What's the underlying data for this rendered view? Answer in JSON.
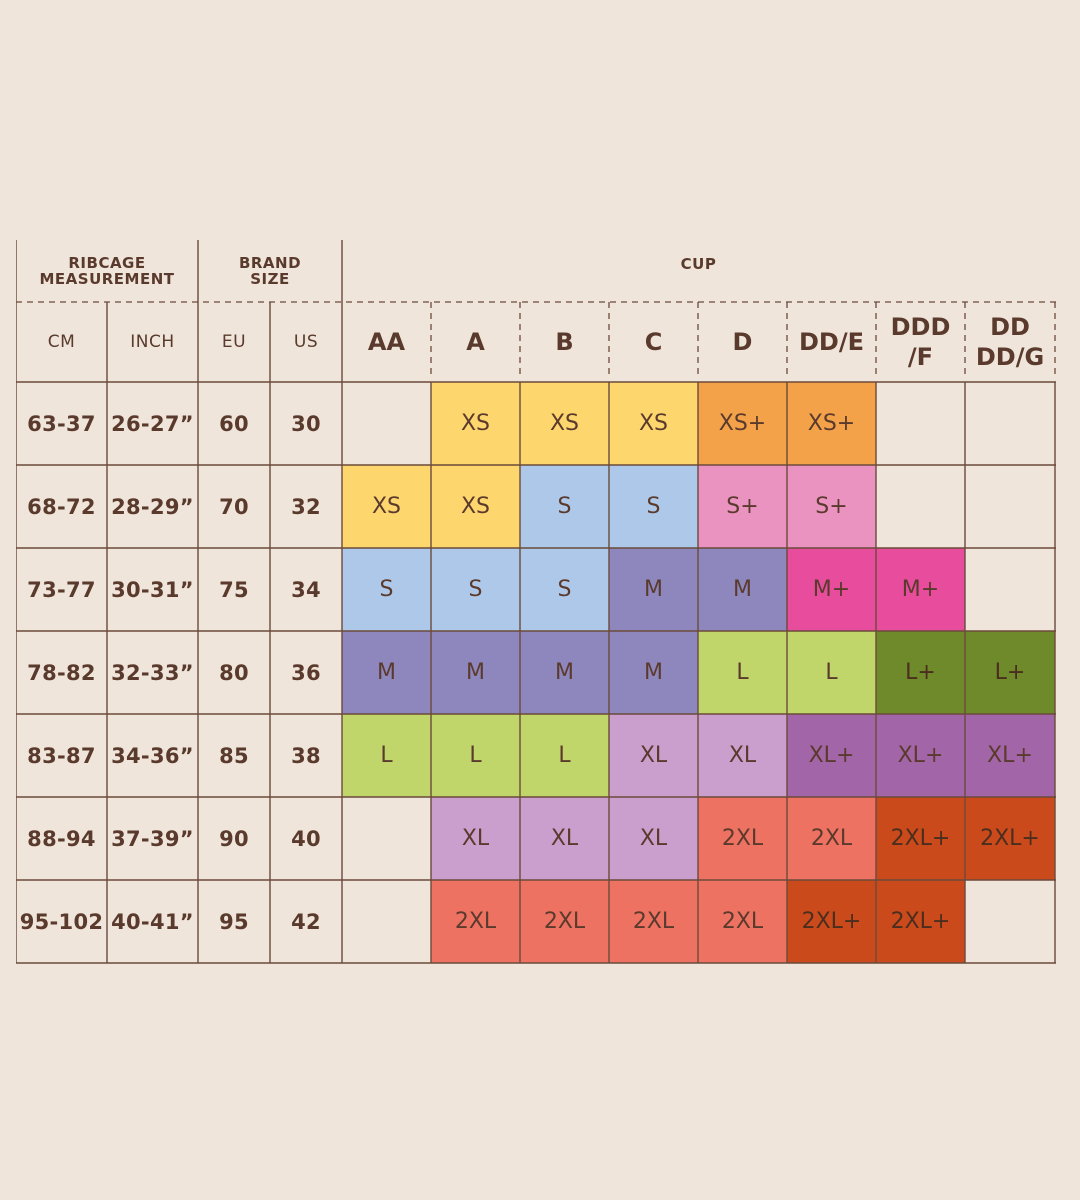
{
  "headers": {
    "ribcage": "RIBCAGE\nMEASUREMENT",
    "brand": "BRAND\nSIZE",
    "cup": "CUP",
    "cm": "CM",
    "inch": "INCH",
    "eu": "EU",
    "us": "US"
  },
  "cups": [
    "AA",
    "A",
    "B",
    "C",
    "D",
    "DD/E",
    "DDD\n/F",
    "DD\nDD/G"
  ],
  "colors": {
    "background": "#EFE5DA",
    "text": "#5A3A2C",
    "lines": "#6B4A3A",
    "XS": "#FDD66E",
    "XS+": "#F4A24A",
    "S": "#AEC8EA",
    "S+": "#EA93C0",
    "M": "#8E87BE",
    "M+": "#E84C9C",
    "L": "#C1D66A",
    "L+": "#6F8A2B",
    "XL": "#CA9ECD",
    "XL+": "#A265A7",
    "2XL": "#EE7262",
    "2XL+": "#CB4A1C",
    "empty": "#EFE5DA"
  },
  "rows": [
    {
      "cm": "63-37",
      "inch": "26-27”",
      "eu": "60",
      "us": "30",
      "sizes": [
        "",
        "XS",
        "XS",
        "XS",
        "XS+",
        "XS+",
        "",
        ""
      ]
    },
    {
      "cm": "68-72",
      "inch": "28-29”",
      "eu": "70",
      "us": "32",
      "sizes": [
        "XS",
        "XS",
        "S",
        "S",
        "S+",
        "S+",
        "",
        ""
      ]
    },
    {
      "cm": "73-77",
      "inch": "30-31”",
      "eu": "75",
      "us": "34",
      "sizes": [
        "S",
        "S",
        "S",
        "M",
        "M",
        "M+",
        "M+",
        ""
      ]
    },
    {
      "cm": "78-82",
      "inch": "32-33”",
      "eu": "80",
      "us": "36",
      "sizes": [
        "M",
        "M",
        "M",
        "M",
        "L",
        "L",
        "L+",
        "L+"
      ]
    },
    {
      "cm": "83-87",
      "inch": "34-36”",
      "eu": "85",
      "us": "38",
      "sizes": [
        "L",
        "L",
        "L",
        "XL",
        "XL",
        "XL+",
        "XL+",
        "XL+"
      ]
    },
    {
      "cm": "88-94",
      "inch": "37-39”",
      "eu": "90",
      "us": "40",
      "sizes": [
        "",
        "XL",
        "XL",
        "XL",
        "2XL",
        "2XL",
        "2XL+",
        "2XL+"
      ]
    },
    {
      "cm": "95-102",
      "inch": "40-41”",
      "eu": "95",
      "us": "42",
      "sizes": [
        "",
        "2XL",
        "2XL",
        "2XL",
        "2XL",
        "2XL+",
        "2XL+",
        ""
      ]
    }
  ]
}
